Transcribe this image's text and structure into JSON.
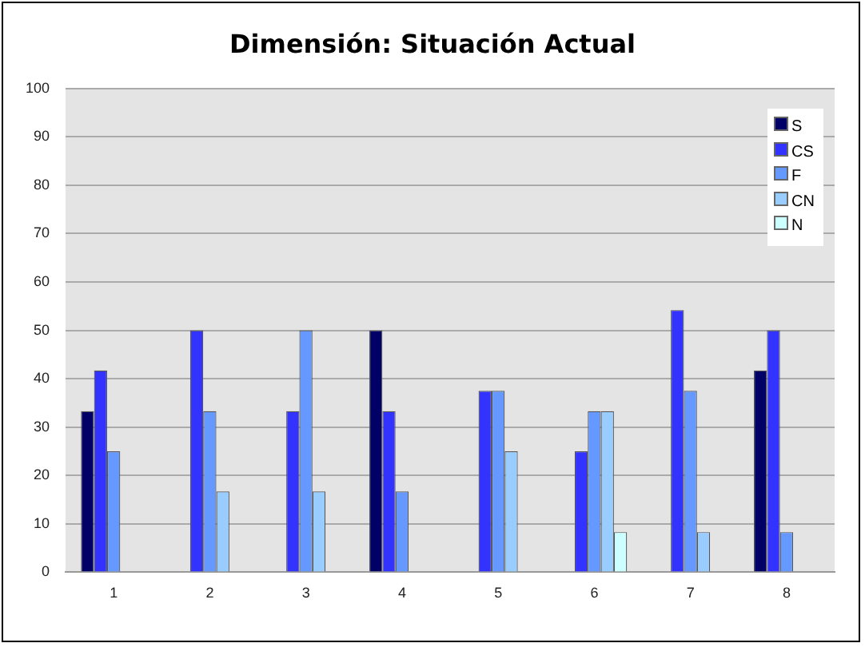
{
  "chart_data": {
    "type": "bar",
    "title": "Dimensión: Situación Actual",
    "categories": [
      "1",
      "2",
      "3",
      "4",
      "5",
      "6",
      "7",
      "8"
    ],
    "series": [
      {
        "name": "S",
        "color": "#000066",
        "values": [
          33.3,
          0,
          0,
          50,
          0,
          0,
          0,
          41.7
        ]
      },
      {
        "name": "CS",
        "color": "#3333ff",
        "values": [
          41.7,
          50,
          33.3,
          33.3,
          37.5,
          25,
          54.2,
          50
        ]
      },
      {
        "name": "F",
        "color": "#6699ff",
        "values": [
          25,
          33.3,
          50,
          16.7,
          37.5,
          33.3,
          37.5,
          8.3
        ]
      },
      {
        "name": "CN",
        "color": "#99ccff",
        "values": [
          0,
          16.7,
          16.7,
          0,
          25,
          33.3,
          8.3,
          0
        ]
      },
      {
        "name": "N",
        "color": "#ccffff",
        "values": [
          0,
          0,
          0,
          0,
          0,
          8.3,
          0,
          0
        ]
      }
    ],
    "ylim": [
      0,
      100
    ],
    "yticks": [
      0,
      10,
      20,
      30,
      40,
      50,
      60,
      70,
      80,
      90,
      100
    ],
    "grid": "y",
    "legend": "top right"
  }
}
